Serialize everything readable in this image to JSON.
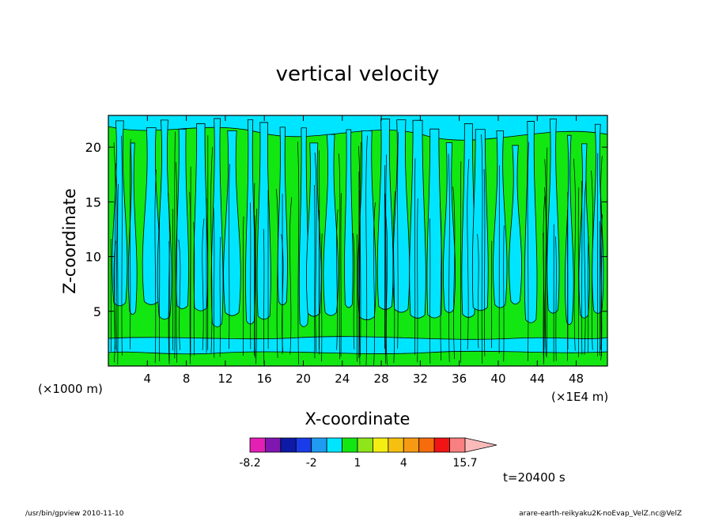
{
  "chart_data": {
    "type": "heatmap",
    "title": "vertical velocity",
    "xlabel": "X-coordinate",
    "ylabel": "Z-coordinate",
    "x_unit_left": "(×1000 m)",
    "x_unit_right": "(×1E4 m)",
    "xlim": [
      0,
      51.2
    ],
    "ylim": [
      0,
      22.9
    ],
    "x_ticks": [
      4,
      8,
      12,
      16,
      20,
      24,
      28,
      32,
      36,
      40,
      44,
      48
    ],
    "x_tick_labels": [
      "4",
      "8",
      "12",
      "16",
      "20",
      "24",
      "28",
      "32",
      "36",
      "40",
      "44",
      "48"
    ],
    "y_ticks": [
      5,
      10,
      15,
      20
    ],
    "y_tick_labels": [
      "5",
      "10",
      "15",
      "20"
    ],
    "colorbar": {
      "bins": [
        {
          "color": "#e31fb4"
        },
        {
          "color": "#7f16b0"
        },
        {
          "color": "#0c1aa6"
        },
        {
          "color": "#1a3ce8"
        },
        {
          "color": "#1f9cf2"
        },
        {
          "color": "#00e5ff"
        },
        {
          "color": "#12e712"
        },
        {
          "color": "#8ee61a"
        },
        {
          "color": "#f4ee12"
        },
        {
          "color": "#f6c010"
        },
        {
          "color": "#f59a12"
        },
        {
          "color": "#f66c0c"
        },
        {
          "color": "#f01414"
        },
        {
          "color": "#f88080"
        }
      ],
      "extend_color": "#fbbaba",
      "labels": [
        {
          "text": "-8.2",
          "bin": 0
        },
        {
          "text": "-2",
          "bin": 4
        },
        {
          "text": "1",
          "bin": 7
        },
        {
          "text": "4",
          "bin": 10
        },
        {
          "text": "15.7",
          "bin": 14
        }
      ]
    },
    "time_text": "t=20400 s"
  },
  "footer": {
    "left": "/usr/bin/gpview   2010-11-10",
    "right": "arare-earth-reikyaku2K-noEvap_VelZ.nc@VelZ"
  },
  "colors": {
    "cyan": "#00e5ff",
    "green": "#12e712",
    "contour": "#000000"
  }
}
